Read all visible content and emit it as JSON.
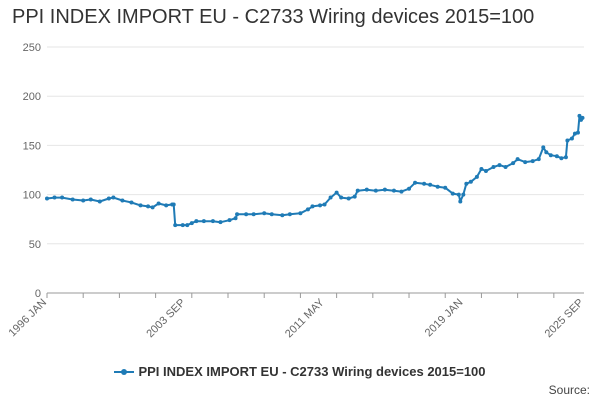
{
  "title": "PPI INDEX IMPORT EU - C2733 Wiring devices 2015=100",
  "source_label": "Source:",
  "colors": {
    "series": "#1f7bb6",
    "grid": "#e6e6e6",
    "axis": "#999999"
  },
  "chart_data": {
    "type": "line",
    "title": "PPI INDEX IMPORT EU - C2733 Wiring devices 2015=100",
    "xlabel": "",
    "ylabel": "",
    "ylim": [
      0,
      250
    ],
    "yticks": [
      0,
      50,
      100,
      150,
      200,
      250
    ],
    "xlim": [
      "1996-01",
      "2025-09"
    ],
    "xtick_labels": [
      "1996 JAN",
      "2003 SEP",
      "2011 MAY",
      "2019 JAN",
      "2025 SEP"
    ],
    "xtick_positions": [
      "1996-01",
      "2003-09",
      "2011-05",
      "2019-01",
      "2025-09"
    ],
    "grid": "horizontal",
    "legend": "bottom",
    "series": [
      {
        "name": "PPI INDEX IMPORT EU - C2733 Wiring devices 2015=100",
        "points": [
          [
            "1996-01",
            96
          ],
          [
            "1996-06",
            97
          ],
          [
            "1996-11",
            97
          ],
          [
            "1997-06",
            95
          ],
          [
            "1998-01",
            94
          ],
          [
            "1998-06",
            95
          ],
          [
            "1998-12",
            93
          ],
          [
            "1999-06",
            96
          ],
          [
            "1999-09",
            97
          ],
          [
            "2000-03",
            94
          ],
          [
            "2000-09",
            92
          ],
          [
            "2001-03",
            89
          ],
          [
            "2001-08",
            88
          ],
          [
            "2001-11",
            87
          ],
          [
            "2002-03",
            91
          ],
          [
            "2002-08",
            89
          ],
          [
            "2002-12",
            90
          ],
          [
            "2003-01",
            90
          ],
          [
            "2003-02",
            69
          ],
          [
            "2003-07",
            69
          ],
          [
            "2003-10",
            69
          ],
          [
            "2004-01",
            71
          ],
          [
            "2004-04",
            73
          ],
          [
            "2004-09",
            73
          ],
          [
            "2005-03",
            73
          ],
          [
            "2005-08",
            72
          ],
          [
            "2006-02",
            74
          ],
          [
            "2006-06",
            76
          ],
          [
            "2006-07",
            80
          ],
          [
            "2007-01",
            80
          ],
          [
            "2007-06",
            80
          ],
          [
            "2008-01",
            81
          ],
          [
            "2008-06",
            80
          ],
          [
            "2009-01",
            79
          ],
          [
            "2009-06",
            80
          ],
          [
            "2010-01",
            81
          ],
          [
            "2010-06",
            85
          ],
          [
            "2010-09",
            88
          ],
          [
            "2011-02",
            89
          ],
          [
            "2011-05",
            90
          ],
          [
            "2011-09",
            97
          ],
          [
            "2012-01",
            102
          ],
          [
            "2012-04",
            97
          ],
          [
            "2012-09",
            96
          ],
          [
            "2013-01",
            98
          ],
          [
            "2013-03",
            104
          ],
          [
            "2013-09",
            105
          ],
          [
            "2014-03",
            104
          ],
          [
            "2014-09",
            105
          ],
          [
            "2015-03",
            104
          ],
          [
            "2015-08",
            103
          ],
          [
            "2016-01",
            106
          ],
          [
            "2016-05",
            112
          ],
          [
            "2016-11",
            111
          ],
          [
            "2017-03",
            110
          ],
          [
            "2017-08",
            108
          ],
          [
            "2018-01",
            107
          ],
          [
            "2018-06",
            101
          ],
          [
            "2018-10",
            100
          ],
          [
            "2018-11",
            93
          ],
          [
            "2019-01",
            100
          ],
          [
            "2019-03",
            111
          ],
          [
            "2019-06",
            113
          ],
          [
            "2019-10",
            118
          ],
          [
            "2020-01",
            126
          ],
          [
            "2020-04",
            124
          ],
          [
            "2020-09",
            128
          ],
          [
            "2021-01",
            130
          ],
          [
            "2021-05",
            128
          ],
          [
            "2021-10",
            132
          ],
          [
            "2022-01",
            136
          ],
          [
            "2022-06",
            133
          ],
          [
            "2022-11",
            134
          ],
          [
            "2023-03",
            136
          ],
          [
            "2023-06",
            148
          ],
          [
            "2023-08",
            143
          ],
          [
            "2023-11",
            140
          ],
          [
            "2024-03",
            139
          ],
          [
            "2024-06",
            137
          ],
          [
            "2024-09",
            138
          ],
          [
            "2024-10",
            155
          ],
          [
            "2025-01",
            157
          ],
          [
            "2025-03",
            162
          ],
          [
            "2025-05",
            163
          ],
          [
            "2025-06",
            180
          ],
          [
            "2025-07",
            176
          ],
          [
            "2025-08",
            178
          ]
        ]
      }
    ]
  }
}
